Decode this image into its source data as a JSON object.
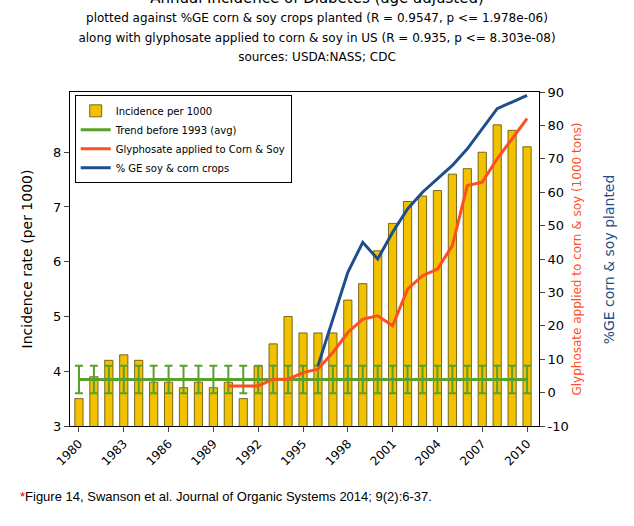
{
  "chart_data": {
    "type": "bar",
    "title": "Annual Incidence of Diabetes (age adjusted)",
    "subtitle": [
      "plotted against %GE corn & soy crops planted (R = 0.9547, p <= 1.978e-06)",
      "along with glyphosate applied to corn & soy in US (R = 0.935, p <= 8.303e-08)",
      "sources: USDA:NASS; CDC"
    ],
    "ylabel": "Incidence rate (per 1000)",
    "y2label": "Glyphosate applied to corn & soy (1000 tons)",
    "annotations": [
      {
        "text": "%GE corn & soy planted",
        "color": "#1f4e8c"
      },
      {
        "text": "*Figure 14, Swanson et al. Journal of Organic Systems 2014; 9(2):6-37.",
        "color": "#000000"
      }
    ],
    "x": [
      1980,
      1981,
      1982,
      1983,
      1984,
      1985,
      1986,
      1987,
      1988,
      1989,
      1990,
      1991,
      1992,
      1993,
      1994,
      1995,
      1996,
      1997,
      1998,
      1999,
      2000,
      2001,
      2002,
      2003,
      2004,
      2005,
      2006,
      2007,
      2008,
      2009,
      2010
    ],
    "xlim": [
      1979.4,
      2010.8
    ],
    "xticks": [
      1980,
      1983,
      1986,
      1989,
      1992,
      1995,
      1998,
      2001,
      2004,
      2007,
      2010
    ],
    "ylim": [
      3,
      9.1
    ],
    "yticks": [
      3,
      4,
      5,
      6,
      7,
      8
    ],
    "y2lim": [
      -10,
      90
    ],
    "y2ticks": [
      -10,
      0,
      10,
      20,
      30,
      40,
      50,
      60,
      70,
      80,
      90
    ],
    "grid": false,
    "legend": "top left",
    "series": [
      {
        "name": "Incidence per 1000",
        "type": "bar",
        "color": "#f2c200",
        "values": [
          3.5,
          3.9,
          4.2,
          4.3,
          4.2,
          3.8,
          3.8,
          3.7,
          3.8,
          3.7,
          3.8,
          3.5,
          4.1,
          4.5,
          5.0,
          4.7,
          4.7,
          4.7,
          5.3,
          5.6,
          6.2,
          6.7,
          7.1,
          7.2,
          7.3,
          7.6,
          7.7,
          8.0,
          8.5,
          8.4,
          8.1
        ]
      },
      {
        "name": "Trend before 1993 (avg)",
        "type": "line",
        "color": "#5aa02c",
        "values": [
          3.85,
          3.85,
          3.85,
          3.85,
          3.85,
          3.85,
          3.85,
          3.85,
          3.85,
          3.85,
          3.85,
          3.85,
          3.85,
          3.85,
          3.85,
          3.85,
          3.85,
          3.85,
          3.85,
          3.85,
          3.85,
          3.85,
          3.85,
          3.85,
          3.85,
          3.85,
          3.85,
          3.85,
          3.85,
          3.85,
          3.85
        ],
        "errors": [
          0.25,
          0.25,
          0.25,
          0.25,
          0.25,
          0.25,
          0.25,
          0.25,
          0.25,
          0.25,
          0.25,
          0.25,
          0.25,
          0.25,
          0.25,
          0.25,
          0.25,
          0.25,
          0.25,
          0.25,
          0.25,
          0.25,
          0.25,
          0.25,
          0.25,
          0.25,
          0.25,
          0.25,
          0.25,
          0.25,
          0.25
        ]
      },
      {
        "name": "Glyphosate applied to Corn & Soy",
        "type": "line",
        "color": "#ff4f1f",
        "axis": "y2",
        "values": [
          null,
          null,
          null,
          null,
          null,
          null,
          null,
          null,
          null,
          null,
          2,
          2,
          2,
          4,
          4,
          6,
          7,
          12,
          18,
          22,
          23,
          20,
          31,
          35,
          37,
          44,
          62,
          63,
          70,
          76,
          82
        ]
      },
      {
        "name": "% GE soy & corn crops",
        "type": "line",
        "color": "#1f4e8c",
        "axis": "y2",
        "values": [
          null,
          null,
          null,
          null,
          null,
          null,
          null,
          null,
          null,
          null,
          null,
          null,
          null,
          null,
          null,
          null,
          8,
          22,
          36,
          45,
          40,
          48,
          55,
          60,
          64,
          68,
          73,
          79,
          85,
          87,
          89
        ]
      }
    ]
  }
}
